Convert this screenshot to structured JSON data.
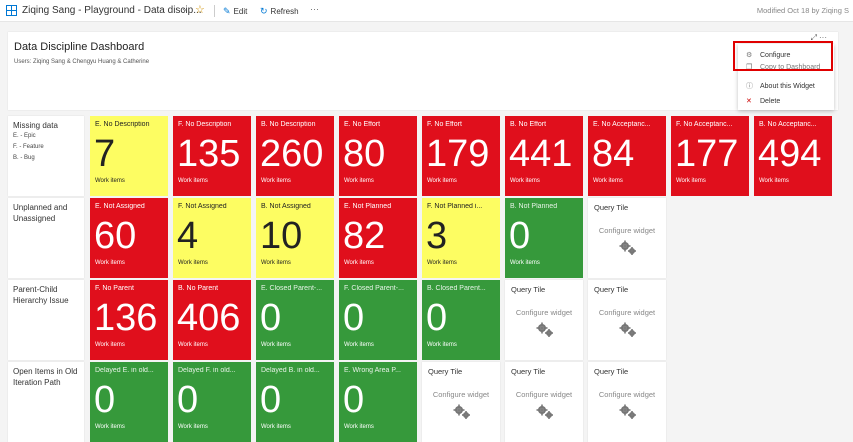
{
  "topbar": {
    "title": "Ziqing Sang - Playground - Data discip...",
    "edit_label": "Edit",
    "refresh_label": "Refresh",
    "more_label": "···",
    "modified": "Modified Oct 18 by Ziqing S"
  },
  "header_widget": {
    "title": "Data Discipline Dashboard",
    "users": "Users: Ziqing Sang & Chengyu Huang & Catherine"
  },
  "context_menu": {
    "items": [
      {
        "label": "Configure",
        "icon": "gear-icon"
      },
      {
        "label": "Copy to Dashboard",
        "icon": "copy-icon"
      },
      {
        "label": "About this Widget",
        "icon": "info-icon"
      },
      {
        "label": "Delete",
        "icon": "close-icon"
      }
    ]
  },
  "rows": [
    {
      "title": "Missing data",
      "legend": [
        "E. - Epic",
        "F. - Feature",
        "B. - Bug"
      ]
    },
    {
      "title": "Unplanned and Unassigned",
      "legend": []
    },
    {
      "title": "Parent-Child Hierarchy Issue",
      "legend": []
    },
    {
      "title": "Open Items in Old Iteration Path",
      "legend": []
    }
  ],
  "tiles": {
    "r0": [
      {
        "title": "E. No Description",
        "value": "7",
        "unit": "Work items",
        "color": "yellow"
      },
      {
        "title": "F. No Description",
        "value": "135",
        "unit": "Work items",
        "color": "red"
      },
      {
        "title": "B. No Description",
        "value": "260",
        "unit": "Work items",
        "color": "red"
      },
      {
        "title": "E. No Effort",
        "value": "80",
        "unit": "Work items",
        "color": "red"
      },
      {
        "title": "F. No Effort",
        "value": "179",
        "unit": "Work items",
        "color": "red"
      },
      {
        "title": "B. No Effort",
        "value": "441",
        "unit": "Work items",
        "color": "red"
      },
      {
        "title": "E. No Acceptanc...",
        "value": "84",
        "unit": "Work items",
        "color": "red"
      },
      {
        "title": "F. No Acceptanc...",
        "value": "177",
        "unit": "Work items",
        "color": "red"
      },
      {
        "title": "B. No Acceptanc...",
        "value": "494",
        "unit": "Work items",
        "color": "red"
      }
    ],
    "r1": [
      {
        "title": "E. Not Assigned",
        "value": "60",
        "unit": "Work items",
        "color": "red"
      },
      {
        "title": "F. Not Assigned",
        "value": "4",
        "unit": "Work items",
        "color": "yellow"
      },
      {
        "title": "B. Not Assigned",
        "value": "10",
        "unit": "Work items",
        "color": "yellow"
      },
      {
        "title": "E. Not Planned",
        "value": "82",
        "unit": "Work items",
        "color": "red"
      },
      {
        "title": "F. Not Planned i...",
        "value": "3",
        "unit": "Work items",
        "color": "yellow"
      },
      {
        "title": "B. Not Planned",
        "value": "0",
        "unit": "Work items",
        "color": "green"
      },
      {
        "title": "Query Tile",
        "config": "Configure widget",
        "color": "white"
      }
    ],
    "r2": [
      {
        "title": "F. No Parent",
        "value": "136",
        "unit": "Work items",
        "color": "red"
      },
      {
        "title": "B. No Parent",
        "value": "406",
        "unit": "Work items",
        "color": "red"
      },
      {
        "title": "E. Closed Parent-...",
        "value": "0",
        "unit": "Work items",
        "color": "green"
      },
      {
        "title": "F. Closed Parent-...",
        "value": "0",
        "unit": "Work items",
        "color": "green"
      },
      {
        "title": "B. Closed Parent...",
        "value": "0",
        "unit": "Work items",
        "color": "green"
      },
      {
        "title": "Query Tile",
        "config": "Configure widget",
        "color": "white"
      },
      {
        "title": "Query Tile",
        "config": "Configure widget",
        "color": "white"
      }
    ],
    "r3": [
      {
        "title": "Delayed E. in old...",
        "value": "0",
        "unit": "Work items",
        "color": "green"
      },
      {
        "title": "Delayed F. in old...",
        "value": "0",
        "unit": "Work items",
        "color": "green"
      },
      {
        "title": "Delayed B. in old...",
        "value": "0",
        "unit": "Work items",
        "color": "green"
      },
      {
        "title": "E. Wrong Area P...",
        "value": "0",
        "unit": "Work items",
        "color": "green"
      },
      {
        "title": "Query Tile",
        "config": "Configure widget",
        "color": "white"
      },
      {
        "title": "Query Tile",
        "config": "Configure widget",
        "color": "white"
      },
      {
        "title": "Query Tile",
        "config": "Configure widget",
        "color": "white"
      }
    ]
  }
}
